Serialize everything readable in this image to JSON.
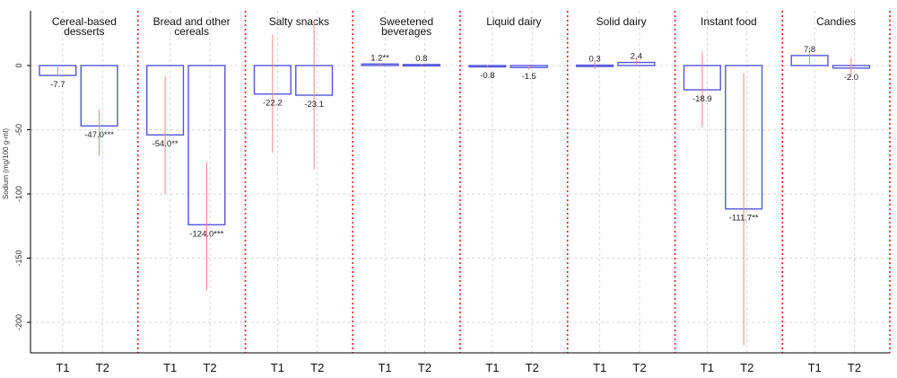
{
  "chart_data": {
    "type": "bar",
    "ylabel": "Sodium (mg/100 g-ml)",
    "ylim": [
      -225,
      15
    ],
    "yticks": [
      0,
      -50,
      -100,
      -150,
      -200
    ],
    "grid": true,
    "x_categories": [
      "T1",
      "T2"
    ],
    "colors": {
      "bar_outline": "#5555dd",
      "error_bar": "#ee8888",
      "separator": "#dd2222",
      "grid": "#cccccc"
    },
    "panels": [
      {
        "title": [
          "Cereal-based",
          "desserts"
        ],
        "bars": [
          {
            "category": "T1",
            "value": -7.7,
            "label": "-7.7",
            "ci": [
              -7.7,
              -1.0
            ]
          },
          {
            "category": "T2",
            "value": -47.0,
            "label": "-47.0***",
            "ci": [
              -70.0,
              -34.0
            ]
          }
        ]
      },
      {
        "title": [
          "Bread and other",
          "cereals"
        ],
        "bars": [
          {
            "category": "T1",
            "value": -54.0,
            "label": "-54.0**",
            "ci": [
              -100.0,
              -8.0
            ]
          },
          {
            "category": "T2",
            "value": -124.0,
            "label": "-124.0***",
            "ci": [
              -175.0,
              -75.0
            ]
          }
        ]
      },
      {
        "title": [
          "Salty snacks"
        ],
        "bars": [
          {
            "category": "T1",
            "value": -22.2,
            "label": "-22.2",
            "ci": [
              -68.0,
              24.0
            ]
          },
          {
            "category": "T2",
            "value": -23.1,
            "label": "-23.1",
            "ci": [
              -81.0,
              35.0
            ]
          }
        ]
      },
      {
        "title": [
          "Sweetened",
          "beverages"
        ],
        "bars": [
          {
            "category": "T1",
            "value": 1.2,
            "label": "1.2**",
            "ci": [
              0.3,
              2.1
            ]
          },
          {
            "category": "T2",
            "value": 0.8,
            "label": "0.8",
            "ci": [
              0.2,
              1.4
            ]
          }
        ]
      },
      {
        "title": [
          "Liquid dairy"
        ],
        "bars": [
          {
            "category": "T1",
            "value": -0.8,
            "label": "-0.8",
            "ci": [
              -2.0,
              0.5
            ]
          },
          {
            "category": "T2",
            "value": -1.5,
            "label": "-1.5",
            "ci": [
              -3.0,
              0.0
            ]
          }
        ]
      },
      {
        "title": [
          "Solid dairy"
        ],
        "bars": [
          {
            "category": "T1",
            "value": 0.3,
            "label": "0.3",
            "ci": [
              -3.0,
              3.5
            ]
          },
          {
            "category": "T2",
            "value": 2.4,
            "label": "2.4",
            "ci": [
              -1.0,
              5.8
            ]
          }
        ]
      },
      {
        "title": [
          "Instant food"
        ],
        "bars": [
          {
            "category": "T1",
            "value": -18.9,
            "label": "-18.9",
            "ci": [
              -48.0,
              11.0
            ]
          },
          {
            "category": "T2",
            "value": -111.7,
            "label": "-111.7**",
            "ci": [
              -218.0,
              -6.0
            ]
          }
        ]
      },
      {
        "title": [
          "Candies"
        ],
        "bars": [
          {
            "category": "T1",
            "value": 7.8,
            "label": "7.8",
            "ci": [
              1.0,
              14.0
            ]
          },
          {
            "category": "T2",
            "value": -2.0,
            "label": "-2.0",
            "ci": [
              -9.0,
              6.0
            ]
          }
        ]
      }
    ]
  }
}
